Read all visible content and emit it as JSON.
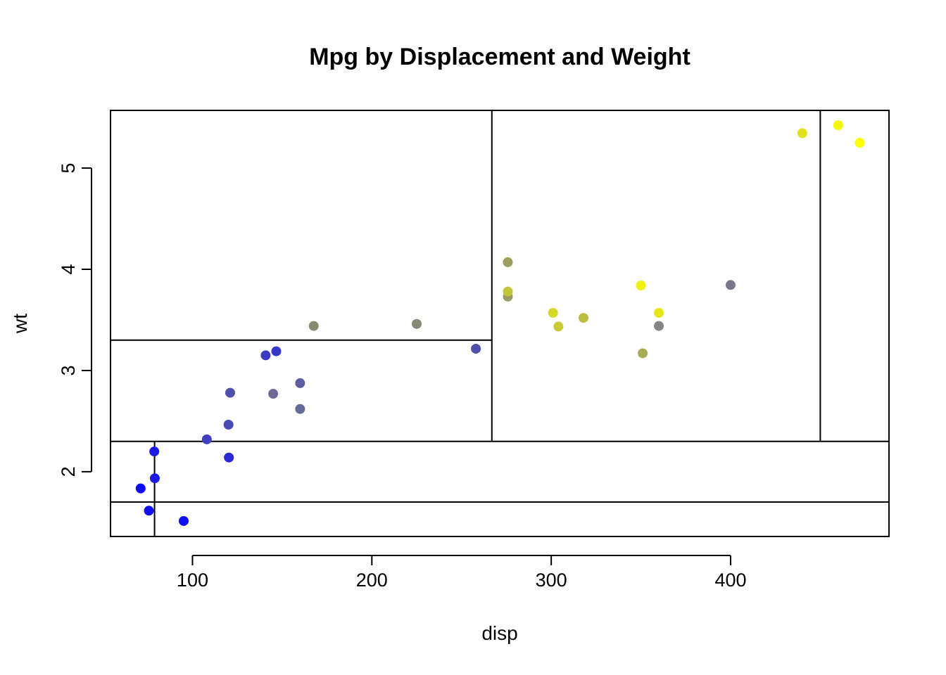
{
  "chart_data": {
    "type": "scatter",
    "title": "Mpg by Displacement and Weight",
    "xlabel": "disp",
    "ylabel": "wt",
    "xlim": [
      54.3,
      488.3
    ],
    "ylim": [
      1.36,
      5.57
    ],
    "xticks": [
      100,
      200,
      300,
      400
    ],
    "yticks": [
      2,
      3,
      4,
      5
    ],
    "grid": false,
    "legend": "none",
    "color_scale": {
      "low": "#0000ff",
      "high": "#ffff00"
    },
    "points": [
      {
        "x": 71.1,
        "y": 1.835,
        "color": "#0b0bf3"
      },
      {
        "x": 75.7,
        "y": 1.615,
        "color": "#1010ee"
      },
      {
        "x": 78.7,
        "y": 2.2,
        "color": "#1a1ae4"
      },
      {
        "x": 79.0,
        "y": 1.935,
        "color": "#1c1ce2"
      },
      {
        "x": 95.1,
        "y": 1.513,
        "color": "#0e0ef0"
      },
      {
        "x": 108.0,
        "y": 2.32,
        "color": "#4040be"
      },
      {
        "x": 120.1,
        "y": 2.465,
        "color": "#4a4ab4"
      },
      {
        "x": 120.3,
        "y": 2.14,
        "color": "#2929d5"
      },
      {
        "x": 121.0,
        "y": 2.78,
        "color": "#5050ae"
      },
      {
        "x": 140.8,
        "y": 3.15,
        "color": "#3a3ac4"
      },
      {
        "x": 145.0,
        "y": 2.77,
        "color": "#6a6a94"
      },
      {
        "x": 146.7,
        "y": 3.19,
        "color": "#3636c8"
      },
      {
        "x": 160.0,
        "y": 2.62,
        "color": "#636b98"
      },
      {
        "x": 160.0,
        "y": 2.875,
        "color": "#5e5ea0"
      },
      {
        "x": 167.6,
        "y": 3.44,
        "color": "#8b8a70"
      },
      {
        "x": 225.0,
        "y": 3.46,
        "color": "#888878"
      },
      {
        "x": 258.0,
        "y": 3.215,
        "color": "#4f4fae"
      },
      {
        "x": 275.8,
        "y": 4.07,
        "color": "#a09e5e"
      },
      {
        "x": 275.8,
        "y": 3.73,
        "color": "#9a9a64"
      },
      {
        "x": 275.8,
        "y": 3.78,
        "color": "#c4c43a"
      },
      {
        "x": 301.0,
        "y": 3.57,
        "color": "#d8d826"
      },
      {
        "x": 304.0,
        "y": 3.435,
        "color": "#c9c935"
      },
      {
        "x": 318.0,
        "y": 3.52,
        "color": "#bcbc42"
      },
      {
        "x": 350.0,
        "y": 3.84,
        "color": "#f0f00e"
      },
      {
        "x": 351.0,
        "y": 3.17,
        "color": "#abab53"
      },
      {
        "x": 360.0,
        "y": 3.44,
        "color": "#858585"
      },
      {
        "x": 360.0,
        "y": 3.57,
        "color": "#e6e618"
      },
      {
        "x": 400.0,
        "y": 3.845,
        "color": "#787888"
      },
      {
        "x": 440.0,
        "y": 5.345,
        "color": "#e2e21c"
      },
      {
        "x": 460.0,
        "y": 5.424,
        "color": "#f5f509"
      },
      {
        "x": 472.0,
        "y": 5.25,
        "color": "#ffff00"
      }
    ],
    "partition_lines": [
      {
        "x1": 54.3,
        "y1": 2.3,
        "x2": 488.3,
        "y2": 2.3
      },
      {
        "x1": 54.3,
        "y1": 1.7,
        "x2": 488.3,
        "y2": 1.7
      },
      {
        "x1": 78.85,
        "y1": 1.36,
        "x2": 78.85,
        "y2": 2.3
      },
      {
        "x1": 266.9,
        "y1": 2.3,
        "x2": 266.9,
        "y2": 5.57
      },
      {
        "x1": 54.3,
        "y1": 3.3,
        "x2": 266.9,
        "y2": 3.3
      },
      {
        "x1": 450.0,
        "y1": 2.3,
        "x2": 450.0,
        "y2": 5.57
      }
    ]
  }
}
